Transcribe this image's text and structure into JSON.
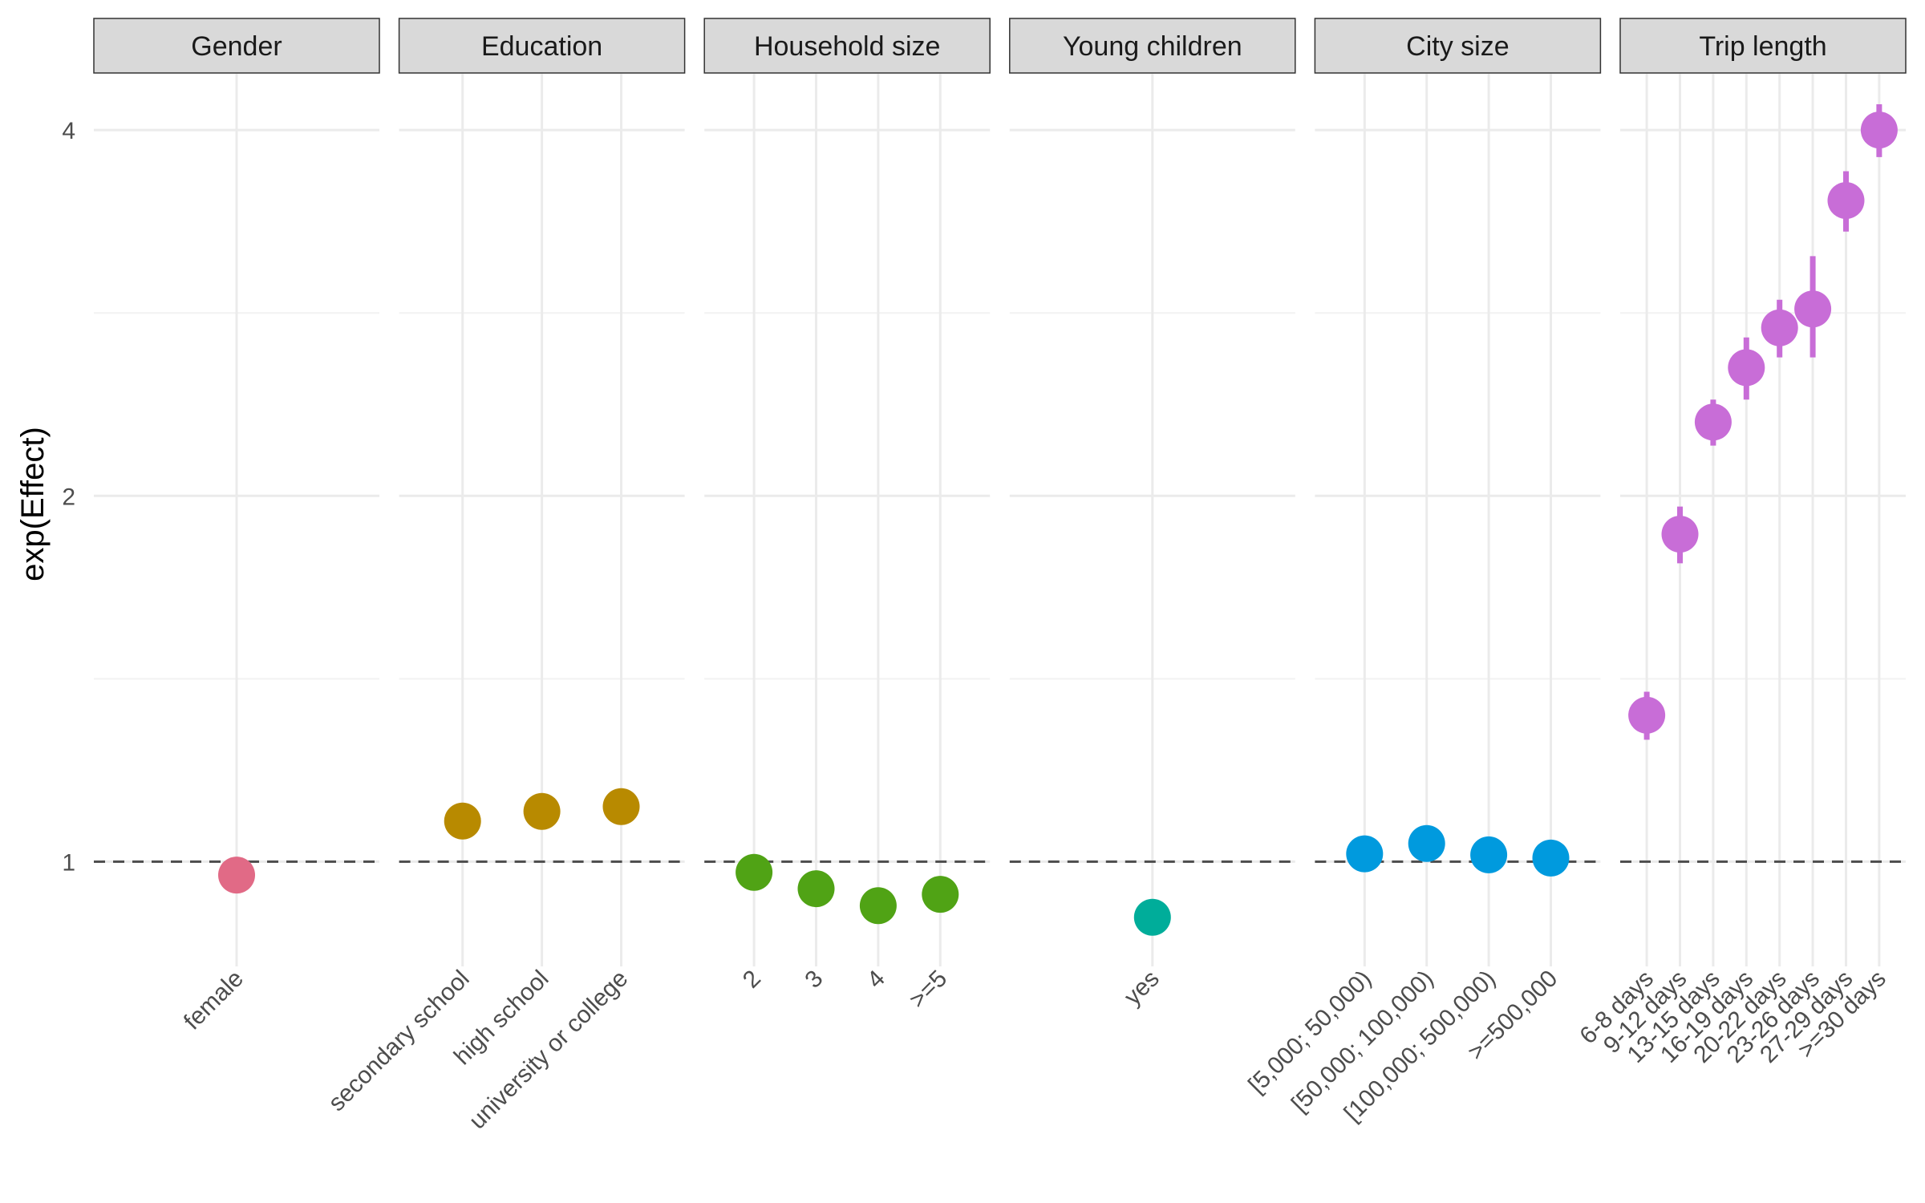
{
  "chart_data": {
    "type": "scatter",
    "ylabel": "exp(Effect)",
    "y_scale": "log",
    "y_ticks": [
      1,
      2,
      4
    ],
    "y_range": [
      0.82,
      4.45
    ],
    "reference_line": 1,
    "grid": true,
    "legend": "none",
    "panels": [
      {
        "strip": "Gender",
        "color": "#E16A86",
        "points": [
          {
            "x": "female",
            "y": 0.975,
            "lo": null,
            "hi": null
          }
        ]
      },
      {
        "strip": "Education",
        "color": "#B88A00",
        "points": [
          {
            "x": "secondary school",
            "y": 1.08,
            "lo": null,
            "hi": null
          },
          {
            "x": "high school",
            "y": 1.1,
            "lo": null,
            "hi": null
          },
          {
            "x": "university or college",
            "y": 1.11,
            "lo": null,
            "hi": null
          }
        ]
      },
      {
        "strip": "Household size",
        "color": "#50A315",
        "points": [
          {
            "x": "2",
            "y": 0.98,
            "lo": null,
            "hi": null
          },
          {
            "x": "3",
            "y": 0.95,
            "lo": null,
            "hi": null
          },
          {
            "x": "4",
            "y": 0.92,
            "lo": null,
            "hi": null
          },
          {
            "x": ">=5",
            "y": 0.94,
            "lo": 0.91,
            "hi": 0.97
          }
        ]
      },
      {
        "strip": "Young children",
        "color": "#00AD9A",
        "points": [
          {
            "x": "yes",
            "y": 0.9,
            "lo": null,
            "hi": null
          }
        ]
      },
      {
        "strip": "City size",
        "color": "#009ADE",
        "points": [
          {
            "x": "[5,000; 50,000)",
            "y": 1.015,
            "lo": null,
            "hi": null
          },
          {
            "x": "[50,000; 100,000)",
            "y": 1.035,
            "lo": null,
            "hi": null
          },
          {
            "x": "[100,000; 500,000)",
            "y": 1.013,
            "lo": null,
            "hi": null
          },
          {
            "x": ">=500,000",
            "y": 1.007,
            "lo": null,
            "hi": null
          }
        ]
      },
      {
        "strip": "Trip length",
        "color": "#C86DD7",
        "points": [
          {
            "x": "6-8 days",
            "y": 1.32,
            "lo": 1.26,
            "hi": 1.38
          },
          {
            "x": "9-12 days",
            "y": 1.86,
            "lo": 1.76,
            "hi": 1.96
          },
          {
            "x": "13-15 days",
            "y": 2.3,
            "lo": 2.2,
            "hi": 2.4
          },
          {
            "x": "16-19 days",
            "y": 2.55,
            "lo": 2.4,
            "hi": 2.7
          },
          {
            "x": "20-22 days",
            "y": 2.75,
            "lo": 2.6,
            "hi": 2.9
          },
          {
            "x": "23-26 days",
            "y": 2.85,
            "lo": 2.6,
            "hi": 3.15
          },
          {
            "x": "27-29 days",
            "y": 3.5,
            "lo": 3.3,
            "hi": 3.7
          },
          {
            "x": ">=30 days",
            "y": 4.0,
            "lo": 3.8,
            "hi": 4.2
          }
        ]
      }
    ]
  }
}
